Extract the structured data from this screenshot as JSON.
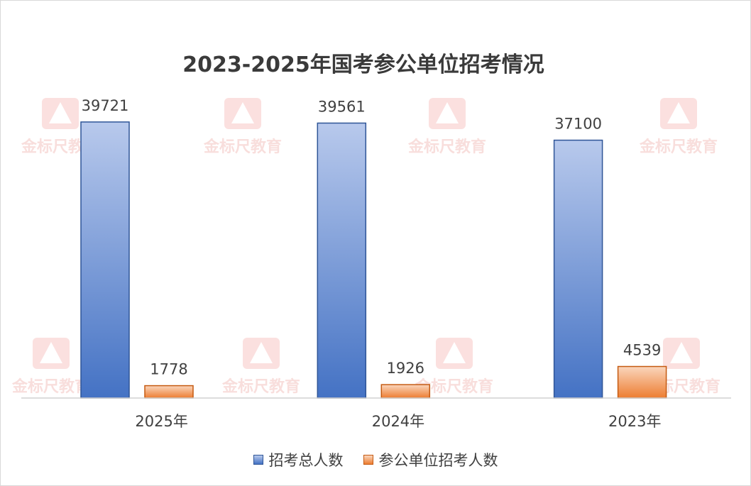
{
  "chart_data": {
    "type": "bar",
    "title": "2023-2025年国考参公单位招考情况",
    "categories": [
      "2025年",
      "2024年",
      "2023年"
    ],
    "series": [
      {
        "name": "招考总人数",
        "values": [
          39721,
          39561,
          37100
        ],
        "color": "#4472c4"
      },
      {
        "name": "参公单位招考人数",
        "values": [
          1778,
          1926,
          4539
        ],
        "color": "#ed7d31"
      }
    ],
    "xlabel": "",
    "ylabel": "",
    "ylim": [
      0,
      44000
    ],
    "grid": false,
    "legend_position": "bottom"
  },
  "watermark": {
    "text": "金标尺教育",
    "icon": "pyramid-logo-icon"
  }
}
